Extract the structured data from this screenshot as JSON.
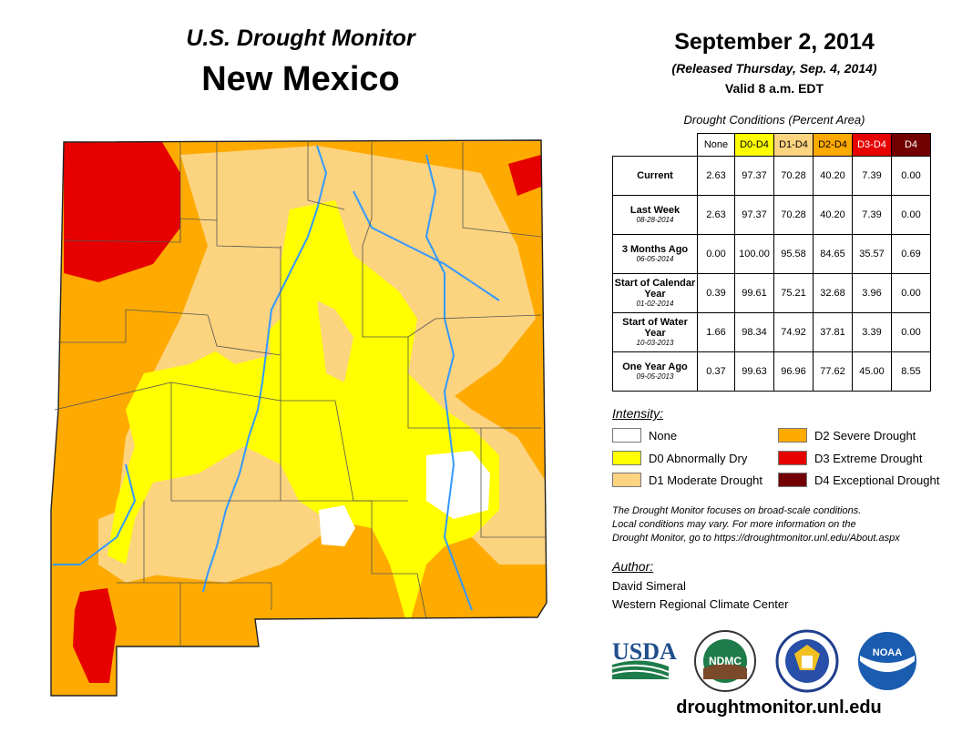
{
  "header": {
    "subtitle": "U.S. Drought Monitor",
    "state": "New Mexico",
    "date": "September 2, 2014",
    "released": "(Released Thursday, Sep. 4, 2014)",
    "valid": "Valid 8 a.m. EDT"
  },
  "table": {
    "caption": "Drought Conditions (Percent Area)",
    "columns": [
      "None",
      "D0-D4",
      "D1-D4",
      "D2-D4",
      "D3-D4",
      "D4"
    ],
    "rows": [
      {
        "label": "Current",
        "date": "",
        "values": [
          "2.63",
          "97.37",
          "70.28",
          "40.20",
          "7.39",
          "0.00"
        ]
      },
      {
        "label": "Last Week",
        "date": "08-28-2014",
        "values": [
          "2.63",
          "97.37",
          "70.28",
          "40.20",
          "7.39",
          "0.00"
        ]
      },
      {
        "label": "3 Months Ago",
        "date": "06-05-2014",
        "values": [
          "0.00",
          "100.00",
          "95.58",
          "84.65",
          "35.57",
          "0.69"
        ]
      },
      {
        "label": "Start of Calendar Year",
        "date": "01-02-2014",
        "values": [
          "0.39",
          "99.61",
          "75.21",
          "32.68",
          "3.96",
          "0.00"
        ]
      },
      {
        "label": "Start of Water Year",
        "date": "10-03-2013",
        "values": [
          "1.66",
          "98.34",
          "74.92",
          "37.81",
          "3.39",
          "0.00"
        ]
      },
      {
        "label": "One Year Ago",
        "date": "09-05-2013",
        "values": [
          "0.37",
          "99.63",
          "96.96",
          "77.62",
          "45.00",
          "8.55"
        ]
      }
    ]
  },
  "legend": {
    "title": "Intensity:",
    "items": [
      {
        "label": "None",
        "color": "#ffffff"
      },
      {
        "label": "D0 Abnormally Dry",
        "color": "#ffff00"
      },
      {
        "label": "D1 Moderate Drought",
        "color": "#fcd37f"
      },
      {
        "label": "D2 Severe Drought",
        "color": "#ffaa00"
      },
      {
        "label": "D3 Extreme Drought",
        "color": "#e60000"
      },
      {
        "label": "D4 Exceptional Drought",
        "color": "#730000"
      }
    ]
  },
  "note": {
    "line1": "The Drought Monitor focuses on broad-scale conditions.",
    "line2": "Local conditions may vary. For more information on the",
    "line3": "Drought Monitor, go to https://droughtmonitor.unl.edu/About.aspx"
  },
  "author": {
    "title": "Author:",
    "name": "David Simeral",
    "org": "Western Regional Climate Center"
  },
  "logos": {
    "usda": "USDA",
    "ndmc": "NDMC",
    "noaa": "NOAA"
  },
  "url": "droughtmonitor.unl.edu",
  "colors": {
    "none": "#ffffff",
    "d0": "#ffff00",
    "d1": "#fcd37f",
    "d2": "#ffaa00",
    "d3": "#e60000",
    "d4": "#730000",
    "river": "#3399ff"
  }
}
